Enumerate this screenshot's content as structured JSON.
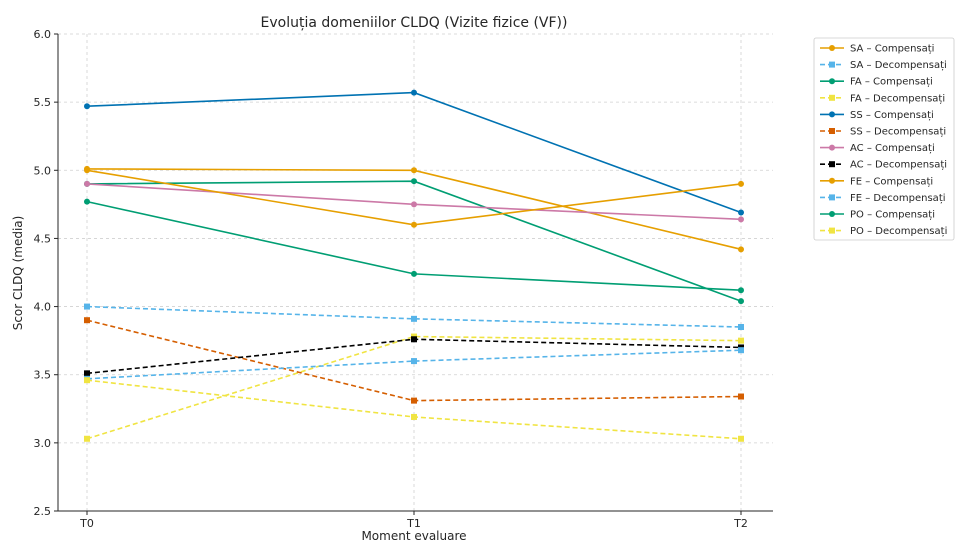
{
  "chart_data": {
    "type": "line",
    "title": "Evoluția domeniilor CLDQ (Vizite fizice (VF))",
    "xlabel": "Moment evaluare",
    "ylabel": "Scor CLDQ (media)",
    "categories": [
      "T0",
      "T1",
      "T2"
    ],
    "ylim": [
      2.5,
      6.0
    ],
    "yticks": [
      "2.5",
      "3.0",
      "3.5",
      "4.0",
      "4.5",
      "5.0",
      "5.5",
      "6.0"
    ],
    "grid": true,
    "legend_position": "outside-right",
    "series": [
      {
        "name": "SA – Compensați",
        "values": [
          5.01,
          5.0,
          4.42
        ],
        "color": "#E69F00",
        "dashed": false,
        "marker": "circle"
      },
      {
        "name": "SA – Decompensați",
        "values": [
          4.0,
          3.91,
          3.85
        ],
        "color": "#56B4E9",
        "dashed": true,
        "marker": "square"
      },
      {
        "name": "FA – Compensați",
        "values": [
          4.9,
          4.92,
          4.04
        ],
        "color": "#009E73",
        "dashed": false,
        "marker": "circle"
      },
      {
        "name": "FA – Decompensați",
        "values": [
          3.03,
          3.78,
          3.75
        ],
        "color": "#F0E442",
        "dashed": true,
        "marker": "square"
      },
      {
        "name": "SS – Compensați",
        "values": [
          5.47,
          5.57,
          4.69
        ],
        "color": "#0072B2",
        "dashed": false,
        "marker": "circle"
      },
      {
        "name": "SS – Decompensați",
        "values": [
          3.9,
          3.31,
          3.34
        ],
        "color": "#D55E00",
        "dashed": true,
        "marker": "square"
      },
      {
        "name": "AC – Compensați",
        "values": [
          4.9,
          4.75,
          4.64
        ],
        "color": "#CC79A7",
        "dashed": false,
        "marker": "circle"
      },
      {
        "name": "AC – Decompensați",
        "values": [
          3.51,
          3.76,
          3.7
        ],
        "color": "#000000",
        "dashed": true,
        "marker": "square"
      },
      {
        "name": "FE – Compensați",
        "values": [
          5.0,
          4.6,
          4.9
        ],
        "color": "#E69F00",
        "dashed": false,
        "marker": "circle"
      },
      {
        "name": "FE – Decompensați",
        "values": [
          3.47,
          3.6,
          3.68
        ],
        "color": "#56B4E9",
        "dashed": true,
        "marker": "square"
      },
      {
        "name": "PO – Compensați",
        "values": [
          4.77,
          4.24,
          4.12
        ],
        "color": "#009E73",
        "dashed": false,
        "marker": "circle"
      },
      {
        "name": "PO – Decompensați",
        "values": [
          3.46,
          3.19,
          3.03
        ],
        "color": "#F0E442",
        "dashed": true,
        "marker": "square"
      }
    ]
  }
}
